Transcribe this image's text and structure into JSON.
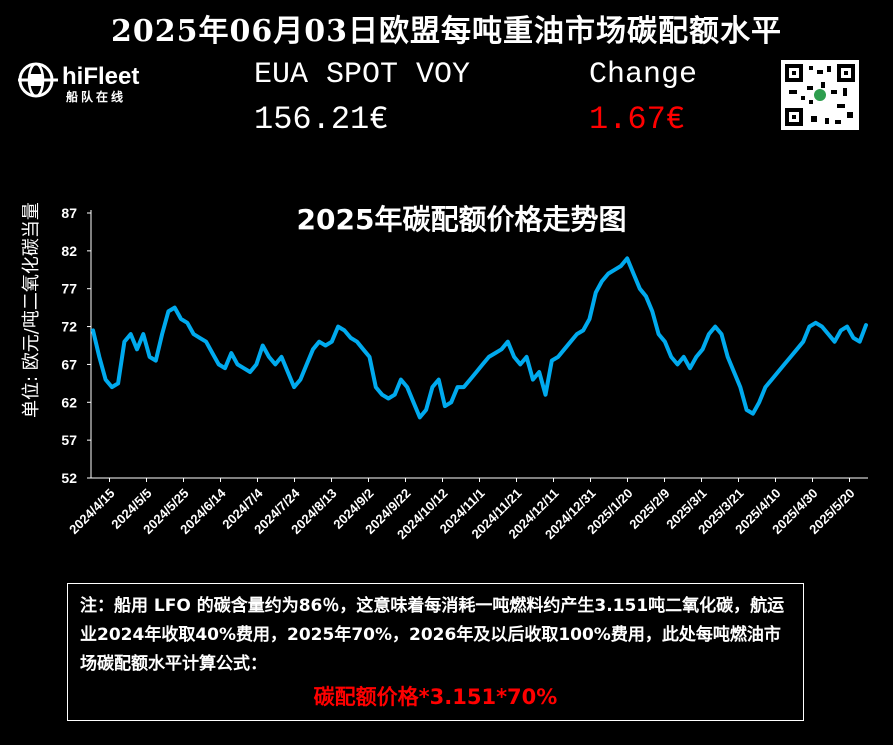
{
  "header": {
    "title": "2025年06月03日欧盟每吨重油市场碳配额水平",
    "logo_text": "hiFleet",
    "logo_sub": "船队在线",
    "eua_label": "EUA SPOT VOY",
    "eua_price": "156.21€",
    "change_label": "Change",
    "change_value": "1.67€"
  },
  "colors": {
    "line": "#00aaee",
    "accent_red": "#ff0000",
    "background": "#000000"
  },
  "chart_data": {
    "type": "line",
    "title": "2025年碳配额价格走势图",
    "ylabel": "单位: 欧元/吨二氧化碳当量",
    "xlabel": "",
    "ylim": [
      52,
      87
    ],
    "yticks": [
      52,
      57,
      62,
      67,
      72,
      77,
      82,
      87
    ],
    "xticks": [
      "2024/4/15",
      "2024/5/5",
      "2024/5/25",
      "2024/6/14",
      "2024/7/4",
      "2024/7/24",
      "2024/8/13",
      "2024/9/2",
      "2024/9/22",
      "2024/10/12",
      "2024/11/1",
      "2024/11/21",
      "2024/12/11",
      "2024/12/31",
      "2025/1/20",
      "2025/2/9",
      "2025/3/1",
      "2025/3/21",
      "2025/4/10",
      "2025/4/30",
      "2025/5/20"
    ],
    "series": [
      {
        "values": [
          71.5,
          68,
          65,
          64,
          64.5,
          70,
          71,
          69,
          71,
          68,
          67.5,
          71,
          74,
          74.5,
          73,
          72.5,
          71,
          70.5,
          70,
          68.5,
          67,
          66.5,
          68.5,
          67,
          66.5,
          66,
          67,
          69.5,
          68,
          67,
          68,
          66,
          64,
          65,
          67,
          69,
          70,
          69.5,
          70,
          72,
          71.5,
          70.5,
          70,
          69,
          68,
          64,
          63,
          62.5,
          63,
          65,
          64,
          62,
          60,
          61,
          64,
          65,
          61.5,
          62,
          64,
          64,
          65,
          66,
          67,
          68,
          68.5,
          69,
          70,
          68,
          67,
          68,
          65,
          66,
          63,
          67.5,
          68,
          69,
          70,
          71,
          71.5,
          73,
          76.5,
          78,
          79,
          79.5,
          80,
          81,
          79,
          77,
          76,
          74,
          71,
          70,
          68,
          67,
          68,
          66.5,
          68,
          69,
          71,
          72,
          71,
          68,
          66,
          64,
          61,
          60.5,
          62,
          64,
          65,
          66,
          67,
          68,
          69,
          70,
          72,
          72.5,
          72,
          71,
          70,
          71.5,
          72,
          70.5,
          70,
          72.2
        ]
      }
    ]
  },
  "note": {
    "text": "注：船用 LFO 的碳含量约为86％，这意味着每消耗一吨燃料约产生3.151吨二氧化碳，航运业2024年收取40%费用，2025年70%，2026年及以后收取100%费用，此处每吨燃油市场碳配额水平计算公式：",
    "formula": "碳配额价格*3.151*70%"
  }
}
